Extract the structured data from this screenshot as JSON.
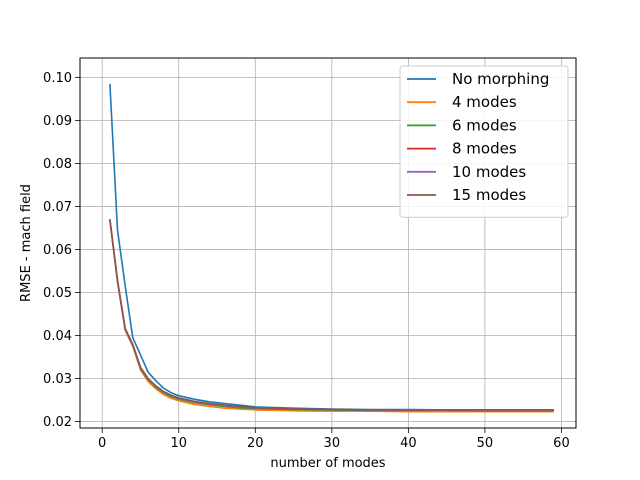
{
  "chart_data": {
    "type": "line",
    "title": "",
    "xlabel": "number of modes",
    "ylabel": "RMSE - mach field",
    "xlim": [
      -2.9,
      61.9
    ],
    "ylim": [
      0.0185,
      0.1045
    ],
    "x_ticks": [
      0,
      10,
      20,
      30,
      40,
      50,
      60
    ],
    "y_ticks": [
      0.02,
      0.03,
      0.04,
      0.05,
      0.06,
      0.07,
      0.08,
      0.09,
      0.1
    ],
    "y_tick_labels": [
      "0.02",
      "0.03",
      "0.04",
      "0.05",
      "0.06",
      "0.07",
      "0.08",
      "0.09",
      "0.10"
    ],
    "grid": true,
    "legend_position": "top-right",
    "series": [
      {
        "name": "No morphing",
        "color": "#1f77b4",
        "x": [
          1,
          2,
          3,
          4,
          5,
          6,
          7,
          8,
          9,
          10,
          12,
          14,
          16,
          18,
          20,
          25,
          30,
          35,
          40,
          45,
          50,
          55,
          59
        ],
        "values": [
          0.0985,
          0.0645,
          0.0515,
          0.0395,
          0.0355,
          0.0315,
          0.0295,
          0.0278,
          0.0267,
          0.026,
          0.0252,
          0.0246,
          0.0242,
          0.0238,
          0.0234,
          0.0231,
          0.0229,
          0.0228,
          0.0228,
          0.0227,
          0.0227,
          0.0227,
          0.0227
        ]
      },
      {
        "name": "4 modes",
        "color": "#ff7f0e",
        "x": [
          1,
          2,
          3,
          4,
          5,
          6,
          7,
          8,
          9,
          10,
          12,
          14,
          16,
          18,
          20,
          25,
          30,
          35,
          40,
          45,
          50,
          55,
          59
        ],
        "values": [
          0.0668,
          0.0525,
          0.0412,
          0.0375,
          0.032,
          0.0293,
          0.0276,
          0.0263,
          0.0254,
          0.0248,
          0.024,
          0.0235,
          0.0231,
          0.0229,
          0.0227,
          0.0225,
          0.0224,
          0.0224,
          0.0223,
          0.0223,
          0.0223,
          0.0223,
          0.0223
        ]
      },
      {
        "name": "6 modes",
        "color": "#2ca02c",
        "x": [
          1,
          2,
          3,
          4,
          5,
          6,
          7,
          8,
          9,
          10,
          12,
          14,
          16,
          18,
          20,
          25,
          30,
          35,
          40,
          45,
          50,
          55,
          59
        ],
        "values": [
          0.0669,
          0.0526,
          0.0414,
          0.0377,
          0.0323,
          0.0297,
          0.028,
          0.0267,
          0.0258,
          0.0252,
          0.0244,
          0.0239,
          0.0235,
          0.0232,
          0.023,
          0.0228,
          0.0227,
          0.0226,
          0.0226,
          0.0226,
          0.0225,
          0.0225,
          0.0225
        ]
      },
      {
        "name": "8 modes",
        "color": "#d62728",
        "x": [
          1,
          2,
          3,
          4,
          5,
          6,
          7,
          8,
          9,
          10,
          12,
          14,
          16,
          18,
          20,
          25,
          30,
          35,
          40,
          45,
          50,
          55,
          59
        ],
        "values": [
          0.067,
          0.0527,
          0.0415,
          0.0378,
          0.0325,
          0.0299,
          0.0282,
          0.0269,
          0.026,
          0.0254,
          0.0246,
          0.0241,
          0.0237,
          0.0234,
          0.0232,
          0.0229,
          0.0228,
          0.0227,
          0.0227,
          0.0227,
          0.0227,
          0.0227,
          0.0227
        ]
      },
      {
        "name": "10 modes",
        "color": "#9467bd",
        "x": [
          1,
          2,
          3,
          4,
          5,
          6,
          7,
          8,
          9,
          10,
          12,
          14,
          16,
          18,
          20,
          25,
          30,
          35,
          40,
          45,
          50,
          55,
          59
        ],
        "values": [
          0.067,
          0.0527,
          0.0415,
          0.0378,
          0.0325,
          0.0299,
          0.0282,
          0.0269,
          0.026,
          0.0254,
          0.0246,
          0.0241,
          0.0237,
          0.0234,
          0.0232,
          0.0229,
          0.0228,
          0.0227,
          0.0227,
          0.0227,
          0.0227,
          0.0227,
          0.0227
        ]
      },
      {
        "name": "15 modes",
        "color": "#8c564b",
        "x": [
          1,
          2,
          3,
          4,
          5,
          6,
          7,
          8,
          9,
          10,
          12,
          14,
          16,
          18,
          20,
          25,
          30,
          35,
          40,
          45,
          50,
          55,
          59
        ],
        "values": [
          0.067,
          0.0528,
          0.0416,
          0.0379,
          0.0326,
          0.03,
          0.0283,
          0.027,
          0.0261,
          0.0255,
          0.0247,
          0.0242,
          0.0238,
          0.0235,
          0.0232,
          0.0229,
          0.0228,
          0.0227,
          0.0227,
          0.0227,
          0.0227,
          0.0227,
          0.0227
        ]
      }
    ]
  }
}
